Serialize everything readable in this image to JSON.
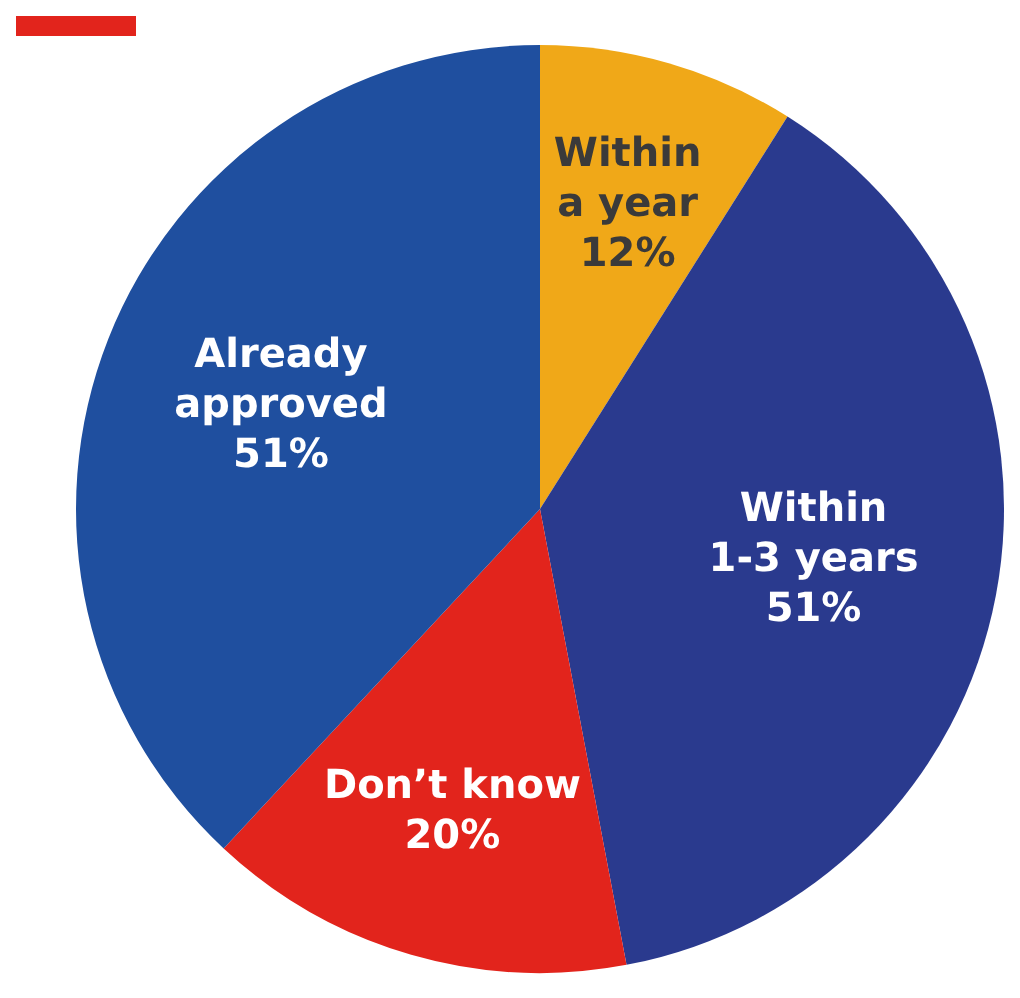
{
  "chart_data": {
    "type": "pie",
    "categories": [
      "Within a year",
      "Within 1-3 years",
      "Don’t know",
      "Already approved"
    ],
    "values": [
      12,
      51,
      20,
      51
    ],
    "value_labels": [
      "12%",
      "51%",
      "20%",
      "51%"
    ],
    "colors": [
      "#f0a818",
      "#2a3a8e",
      "#e2241c",
      "#1f4f9f"
    ],
    "legend": false
  }
}
